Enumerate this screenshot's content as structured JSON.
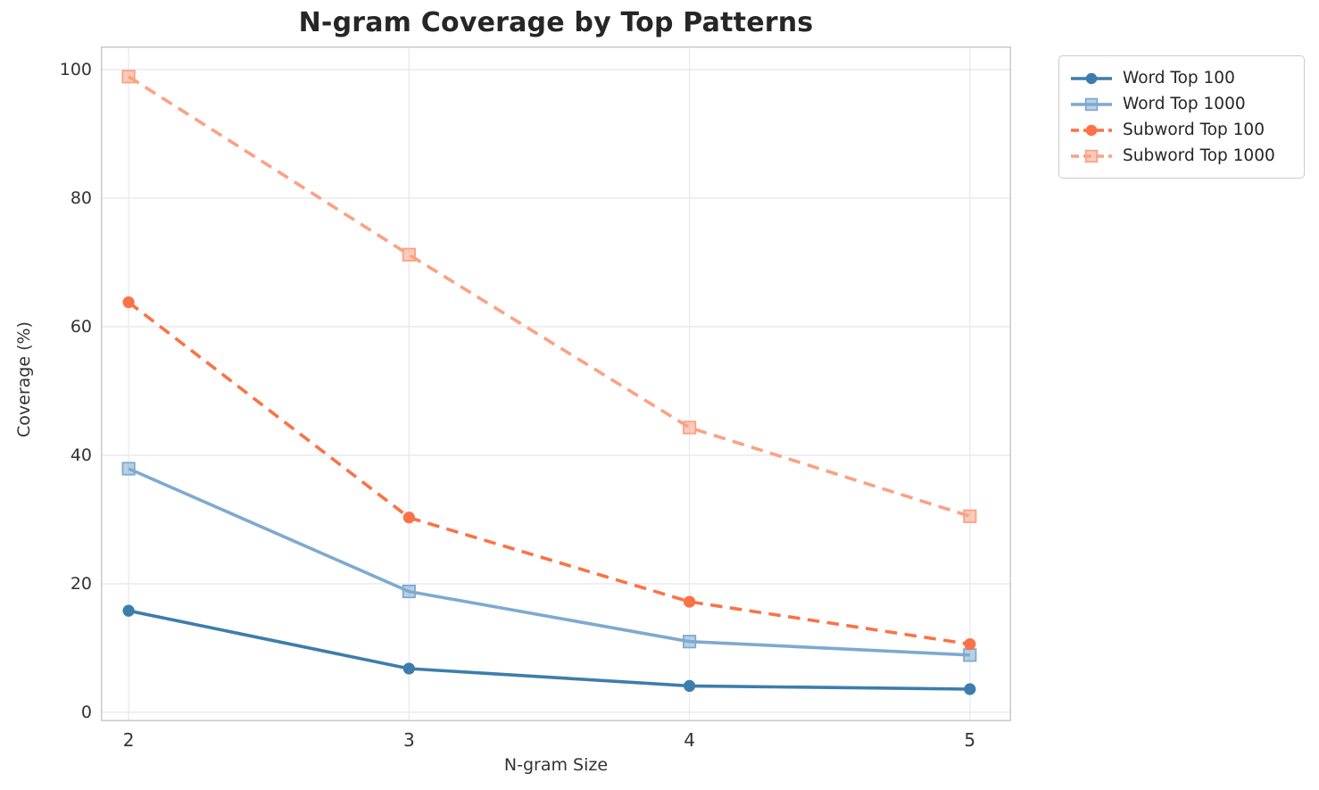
{
  "title": "N-gram Coverage by Top Patterns",
  "chart_data": {
    "type": "line",
    "title": "N-gram Coverage by Top Patterns",
    "xlabel": "N-gram Size",
    "ylabel": "Coverage (%)",
    "x": [
      2,
      3,
      4,
      5
    ],
    "xtick_labels": [
      "2",
      "3",
      "4",
      "5"
    ],
    "ytick_values": [
      0,
      20,
      40,
      60,
      80,
      100
    ],
    "ytick_labels": [
      "0",
      "20",
      "40",
      "60",
      "80",
      "100"
    ],
    "xlim": [
      1.901,
      5.147
    ],
    "ylim": [
      -1.4,
      103.6
    ],
    "grid": true,
    "legend_position": "outside-top-right",
    "series": [
      {
        "name": "Word Top 100",
        "values": [
          15.8,
          6.8,
          4.1,
          3.6
        ],
        "color": "#3d7dab",
        "marker": "circle",
        "line_style": "solid"
      },
      {
        "name": "Word Top 1000",
        "values": [
          37.9,
          18.8,
          11.0,
          8.9
        ],
        "color": "#7fa9cf",
        "marker": "square",
        "line_style": "solid"
      },
      {
        "name": "Subword Top 100",
        "values": [
          63.8,
          30.3,
          17.2,
          10.6
        ],
        "color": "#fb7246",
        "marker": "circle",
        "line_style": "dashed"
      },
      {
        "name": "Subword Top 1000",
        "values": [
          98.9,
          71.2,
          44.3,
          30.5
        ],
        "color": "#fba184",
        "marker": "square",
        "line_style": "dashed"
      }
    ],
    "colors": {
      "grid": "#e8e8ef",
      "spine": "#c9c9cf",
      "title_text": "#262626",
      "tick_text": "#333333",
      "legend_border": "#cccccc"
    }
  }
}
